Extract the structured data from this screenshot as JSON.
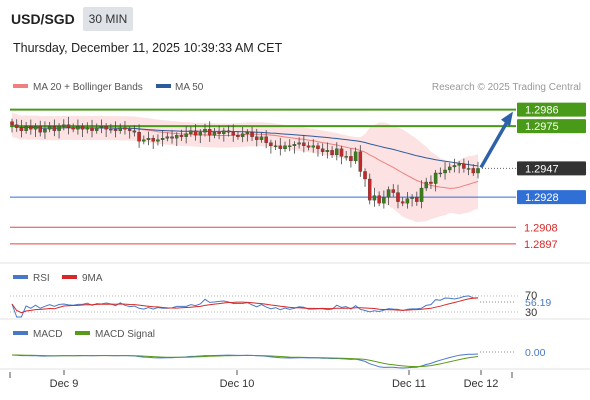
{
  "header": {
    "symbol": "USD/SGD",
    "interval": "30 MIN",
    "datetime": "Thursday, December 11, 2025 10:39:33 AM CET"
  },
  "legend": {
    "ma20_label": "MA 20 + Bollinger Bands",
    "ma50_label": "MA 50",
    "credit": "Research © 2025 Trading Central",
    "colors": {
      "ma20": "#f08080",
      "ma50": "#2d5a9b",
      "band": "#fbd5d5"
    }
  },
  "rsi_panel": {
    "rsi_label": "RSI",
    "ma_label": "9MA",
    "value_label": "56.19",
    "level_70": "70",
    "level_30": "30",
    "colors": {
      "rsi": "#4a78c8",
      "ma": "#d62828"
    }
  },
  "macd_panel": {
    "macd_label": "MACD",
    "signal_label": "MACD Signal",
    "value_label": "0.00",
    "colors": {
      "macd": "#4a78c8",
      "signal": "#5a9a1a"
    }
  },
  "chart_data": {
    "type": "candlestick",
    "instrument": "USD/SGD",
    "interval": "30 MIN",
    "ylim": [
      1.2885,
      1.2995
    ],
    "x_ticks": [
      "Dec 9",
      "Dec 10",
      "Dec 11",
      "Dec 12"
    ],
    "current_price": 1.2947,
    "levels": [
      {
        "value": 1.2986,
        "label": "1.2986",
        "kind": "resistance",
        "color": "#4a9a1a"
      },
      {
        "value": 1.2975,
        "label": "1.2975",
        "kind": "resistance",
        "color": "#4a9a1a"
      },
      {
        "value": 1.2947,
        "label": "1.2947",
        "kind": "last",
        "color": "#333333"
      },
      {
        "value": 1.2928,
        "label": "1.2928",
        "kind": "pivot",
        "color": "#2f6fd6"
      },
      {
        "value": 1.2908,
        "label": "1.2908",
        "kind": "support",
        "color": "#e84545"
      },
      {
        "value": 1.2897,
        "label": "1.2897",
        "kind": "support",
        "color": "#e84545"
      }
    ],
    "closes": [
      1.2976,
      1.2974,
      1.2972,
      1.2975,
      1.2973,
      1.2975,
      1.2971,
      1.2973,
      1.2975,
      1.2972,
      1.2975,
      1.2976,
      1.2974,
      1.2973,
      1.2975,
      1.2973,
      1.2974,
      1.2972,
      1.2974,
      1.2975,
      1.2973,
      1.2973,
      1.2972,
      1.2974,
      1.2973,
      1.2972,
      1.2971,
      1.2965,
      1.2966,
      1.2967,
      1.2965,
      1.2966,
      1.2967,
      1.2968,
      1.2967,
      1.2969,
      1.2968,
      1.297,
      1.2972,
      1.2969,
      1.2971,
      1.2973,
      1.2969,
      1.2971,
      1.297,
      1.2972,
      1.2971,
      1.2969,
      1.2968,
      1.297,
      1.2971,
      1.2968,
      1.2966,
      1.2968,
      1.2964,
      1.2962,
      1.2962,
      1.296,
      1.2962,
      1.2962,
      1.2963,
      1.2964,
      1.2962,
      1.2961,
      1.2962,
      1.296,
      1.2958,
      1.2959,
      1.2956,
      1.296,
      1.2955,
      1.2955,
      1.2952,
      1.2958,
      1.2945,
      1.294,
      1.2926,
      1.2929,
      1.2924,
      1.2928,
      1.2933,
      1.2931,
      1.2925,
      1.2924,
      1.2927,
      1.2928,
      1.2925,
      1.2934,
      1.2938,
      1.2937,
      1.2944,
      1.2944,
      1.2946,
      1.2948,
      1.2949,
      1.295,
      1.2947,
      1.2947,
      1.2944,
      1.2947
    ]
  }
}
